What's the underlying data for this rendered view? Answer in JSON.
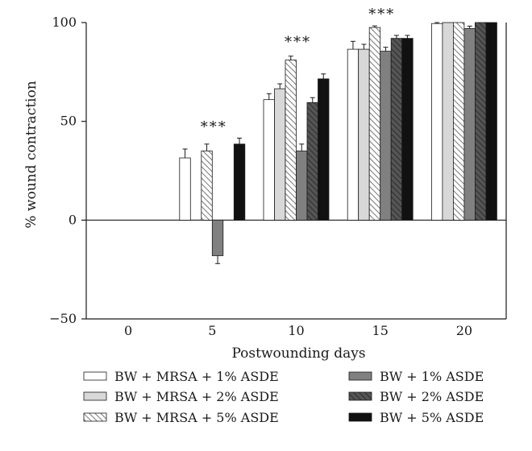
{
  "chart_data": {
    "type": "bar",
    "title": "",
    "xlabel": "Postwounding days",
    "ylabel": "% wound contraction",
    "categories": [
      "0",
      "5",
      "10",
      "15",
      "20"
    ],
    "ylim": [
      -50,
      100
    ],
    "yticks": [
      "100",
      "50",
      "0",
      "−50"
    ],
    "ytick_values": [
      100,
      50,
      0,
      -50
    ],
    "series": [
      {
        "name": "BW + MRSA + 1% ASDE",
        "fill": "#ffffff",
        "pattern": "none",
        "values": [
          null,
          31.5,
          61,
          86.5,
          99.5
        ],
        "errors": [
          null,
          4.5,
          3,
          4,
          0.5
        ]
      },
      {
        "name": "BW + MRSA + 2% ASDE",
        "fill": "#d8d8d8",
        "pattern": "none",
        "values": [
          null,
          null,
          66.5,
          86.5,
          100
        ],
        "errors": [
          null,
          null,
          2.5,
          2.5,
          0
        ]
      },
      {
        "name": "BW + MRSA + 5% ASDE",
        "fill": "#ffffff",
        "pattern": "hatch-light",
        "values": [
          null,
          35,
          81,
          97.5,
          100
        ],
        "errors": [
          null,
          3.5,
          2,
          0.8,
          0
        ]
      },
      {
        "name": "BW + 1% ASDE",
        "fill": "#808080",
        "pattern": "none",
        "values": [
          null,
          -18,
          35,
          85.5,
          97
        ],
        "errors": [
          null,
          4,
          3.5,
          2,
          1.2
        ]
      },
      {
        "name": "BW + 2% ASDE",
        "fill": "#555555",
        "pattern": "hatch-dark",
        "values": [
          null,
          null,
          59.5,
          92,
          100
        ],
        "errors": [
          null,
          null,
          2.5,
          1.5,
          0
        ]
      },
      {
        "name": "BW + 5% ASDE",
        "fill": "#111111",
        "pattern": "none",
        "values": [
          null,
          38.5,
          71.5,
          92,
          100
        ],
        "errors": [
          null,
          3,
          2.5,
          1.5,
          0
        ]
      }
    ],
    "annotations": [
      {
        "category": "5",
        "text": "***",
        "y": 48
      },
      {
        "category": "10",
        "text": "***",
        "y": 91
      },
      {
        "category": "15",
        "text": "***",
        "y": 105
      }
    ],
    "legend": {
      "placement": "bottom",
      "columns": 2
    },
    "grid": false
  }
}
